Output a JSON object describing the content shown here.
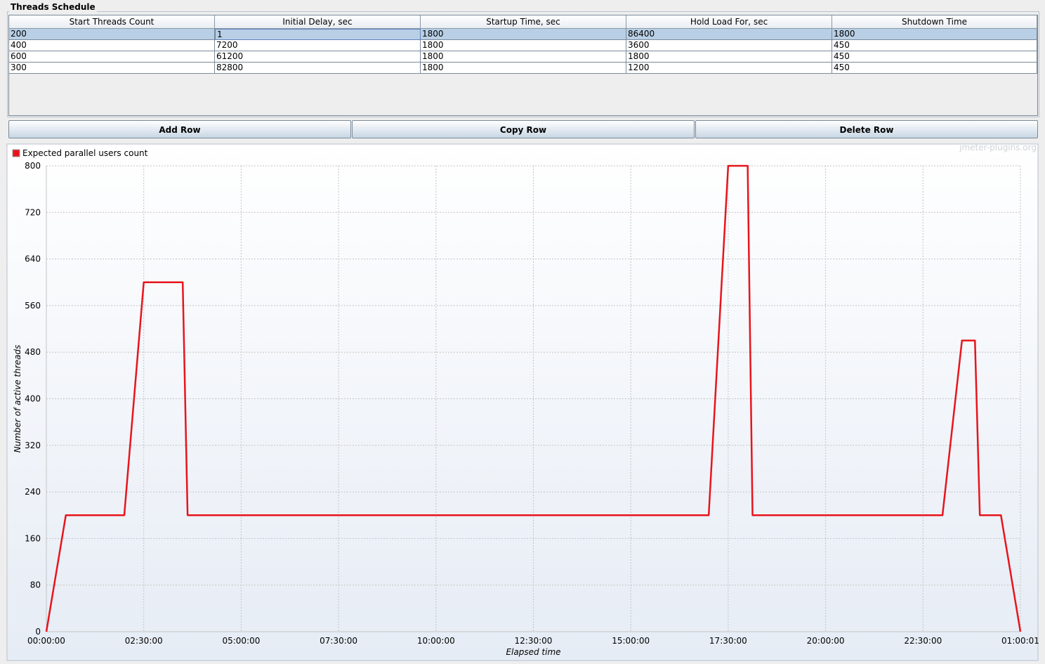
{
  "panel": {
    "title": "Threads Schedule"
  },
  "table": {
    "columns": [
      "Start Threads Count",
      "Initial Delay, sec",
      "Startup Time, sec",
      "Hold Load For, sec",
      "Shutdown Time"
    ],
    "rows": [
      [
        "200",
        "1",
        "1800",
        "86400",
        "1800"
      ],
      [
        "400",
        "7200",
        "1800",
        "3600",
        "450"
      ],
      [
        "600",
        "61200",
        "1800",
        "1800",
        "450"
      ],
      [
        "300",
        "82800",
        "1800",
        "1200",
        "450"
      ]
    ]
  },
  "buttons": [
    "Add Row",
    "Copy Row",
    "Delete Row"
  ],
  "chart_data": {
    "type": "line",
    "watermark": "jmeter-plugins.org",
    "xlabel": "Elapsed time",
    "ylabel": "Number of active threads",
    "x": [
      0,
      1801,
      7200,
      9000,
      12600,
      13050,
      61200,
      63000,
      64800,
      65250,
      82800,
      84600,
      85800,
      86250,
      88201,
      90001
    ],
    "series": [
      {
        "name": "Expected parallel users count",
        "color": "#e8141c",
        "values": [
          0,
          200,
          200,
          600,
          600,
          200,
          200,
          800,
          800,
          200,
          200,
          500,
          500,
          200,
          200,
          0
        ]
      }
    ],
    "xlim": [
      0,
      90001
    ],
    "ylim": [
      0,
      800
    ],
    "xticks": [
      {
        "value": 0,
        "label": "00:00:00"
      },
      {
        "value": 9000,
        "label": "02:30:00"
      },
      {
        "value": 18000,
        "label": "05:00:00"
      },
      {
        "value": 27000,
        "label": "07:30:00"
      },
      {
        "value": 36000,
        "label": "10:00:00"
      },
      {
        "value": 45000,
        "label": "12:30:00"
      },
      {
        "value": 54000,
        "label": "15:00:00"
      },
      {
        "value": 63000,
        "label": "17:30:00"
      },
      {
        "value": 72000,
        "label": "20:00:00"
      },
      {
        "value": 81000,
        "label": "22:30:00"
      },
      {
        "value": 90001,
        "label": "01:00:01"
      }
    ],
    "yticks": [
      0,
      80,
      160,
      240,
      320,
      400,
      480,
      560,
      640,
      720,
      800
    ],
    "grid": true,
    "legend": "upper left"
  }
}
